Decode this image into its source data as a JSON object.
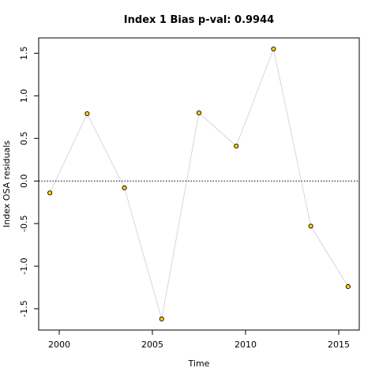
{
  "chart_data": {
    "type": "line",
    "title": "Index 1 Bias p-val: 0.9944",
    "title_color": "#228B22",
    "xlabel": "Time",
    "ylabel": "Index OSA residuals",
    "xlim": [
      1998.9,
      2016.1
    ],
    "ylim": [
      -1.75,
      1.68
    ],
    "x_ticks": [
      2000,
      2005,
      2010,
      2015
    ],
    "y_ticks": [
      -1.5,
      -1.0,
      -0.5,
      0.0,
      0.5,
      1.0,
      1.5
    ],
    "x_tick_labels": [
      "2000",
      "2005",
      "2010",
      "2015"
    ],
    "y_tick_labels": [
      "-1.5",
      "-1.0",
      "-0.5",
      "0.0",
      "0.5",
      "1.0",
      "1.5"
    ],
    "reference_line": 0.0,
    "line_color": "#d3d3d3",
    "point_fill": "#FFD700",
    "point_stroke": "#000000",
    "x": [
      1999.5,
      2001.5,
      2003.5,
      2005.5,
      2007.5,
      2009.5,
      2011.5,
      2013.5,
      2015.5
    ],
    "y": [
      -0.14,
      0.79,
      -0.08,
      -1.62,
      0.8,
      0.41,
      1.55,
      -0.53,
      -1.24
    ],
    "grid": false
  }
}
